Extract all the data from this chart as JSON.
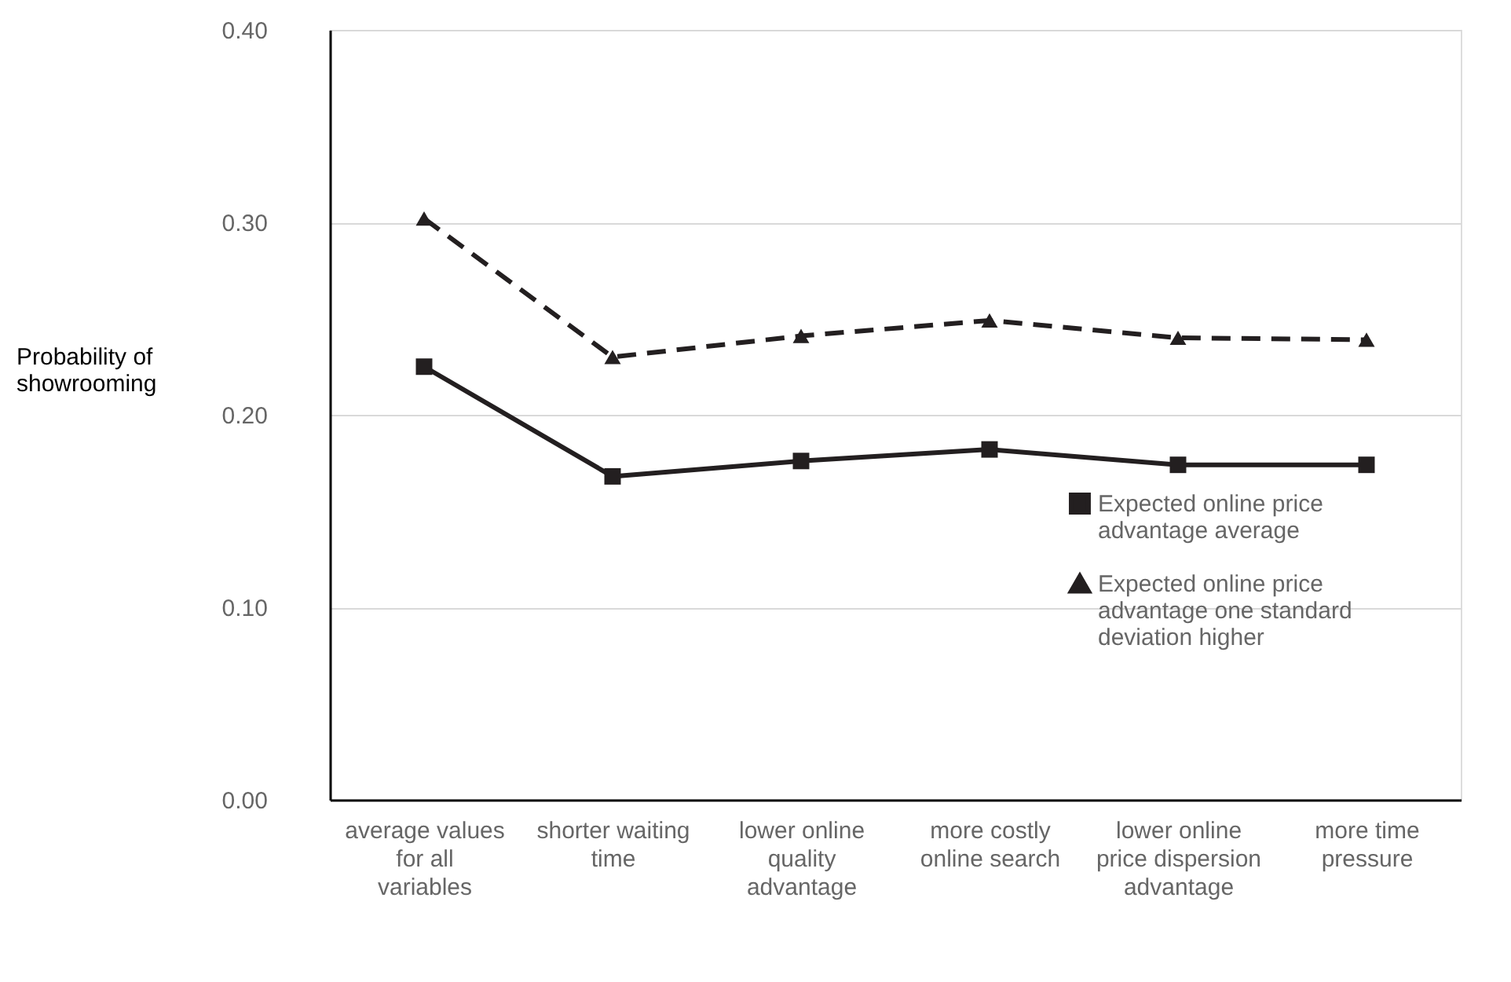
{
  "chart_data": {
    "type": "line",
    "ylabel": "Probability of showrooming",
    "categories": [
      "average values for all variables",
      "shorter waiting time",
      "lower online quality advantage",
      "more costly online search",
      "lower online price dispersion advantage",
      "more time pressure"
    ],
    "series": [
      {
        "name": "Expected online price advantage average",
        "color": "#231f20",
        "marker": "square",
        "line_style": "solid",
        "values": [
          0.225,
          0.168,
          0.176,
          0.182,
          0.174,
          0.174
        ]
      },
      {
        "name": "Expected online price advantage one standard deviation higher",
        "color": "#231f20",
        "marker": "triangle",
        "line_style": "dashed",
        "values": [
          0.302,
          0.23,
          0.241,
          0.249,
          0.24,
          0.239
        ]
      }
    ],
    "ylim": [
      0,
      0.4
    ],
    "yticks": [
      {
        "value": 0,
        "label": "0.00"
      },
      {
        "value": 0.1,
        "label": "0.10"
      },
      {
        "value": 0.2,
        "label": "0.20"
      },
      {
        "value": 0.3,
        "label": "0.30"
      },
      {
        "value": 0.4,
        "label": "0.40"
      }
    ],
    "grid": "y",
    "legend": "right"
  }
}
